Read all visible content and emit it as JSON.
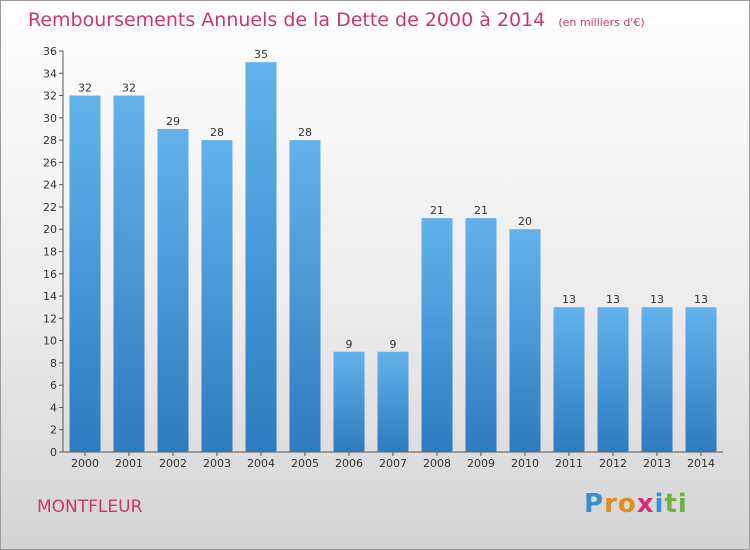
{
  "title": "Remboursements Annuels de la Dette de 2000 à 2014",
  "unit_note": "(en milliers d'€)",
  "city": "MONTFLEUR",
  "logo": {
    "text": "Proxiti",
    "letter_colors": [
      "#3a8fd0",
      "#e38b1f",
      "#e38b1f",
      "#d2307a",
      "#3a8fd0",
      "#6cb33f",
      "#6cb33f"
    ]
  },
  "colors": {
    "bar_top": "#64b2ea",
    "bar_bottom": "#2e7bbf",
    "title": "#c8386e"
  },
  "chart_data": {
    "type": "bar",
    "title": "Remboursements Annuels de la Dette de 2000 à 2014",
    "categories": [
      "2000",
      "2001",
      "2002",
      "2003",
      "2004",
      "2005",
      "2006",
      "2007",
      "2008",
      "2009",
      "2010",
      "2011",
      "2012",
      "2013",
      "2014"
    ],
    "values": [
      32,
      32,
      29,
      28,
      35,
      28,
      9,
      9,
      21,
      21,
      20,
      13,
      13,
      13,
      13
    ],
    "ylim": [
      0,
      36
    ],
    "yticks": [
      0,
      2,
      4,
      6,
      8,
      10,
      12,
      14,
      16,
      18,
      20,
      22,
      24,
      26,
      28,
      30,
      32,
      34,
      36
    ],
    "grid": false,
    "data_labels": true
  }
}
